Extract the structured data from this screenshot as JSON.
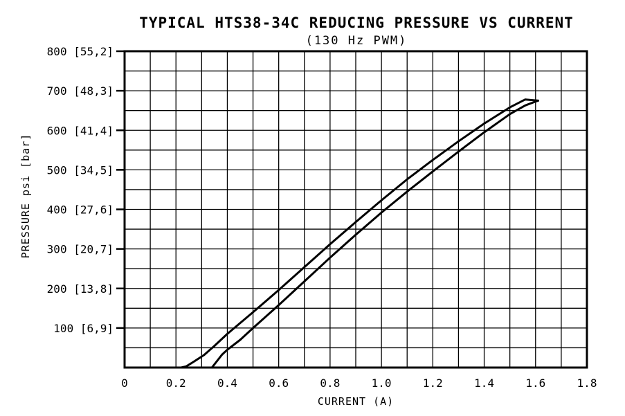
{
  "chart_data": {
    "type": "line",
    "title": "TYPICAL HTS38-34C REDUCING PRESSURE VS CURRENT",
    "subtitle": "(130 Hz PWM)",
    "xlabel": "CURRENT (A)",
    "ylabel": "PRESSURE psi [bar]",
    "xlim": [
      0,
      1.8
    ],
    "ylim": [
      0,
      800
    ],
    "grid": true,
    "x_ticks": [
      {
        "value": 0,
        "label": "0"
      },
      {
        "value": 0.2,
        "label": "0.2"
      },
      {
        "value": 0.4,
        "label": "0.4"
      },
      {
        "value": 0.6,
        "label": "0.6"
      },
      {
        "value": 0.8,
        "label": "0.8"
      },
      {
        "value": 1.0,
        "label": "1.0"
      },
      {
        "value": 1.2,
        "label": "1.2"
      },
      {
        "value": 1.4,
        "label": "1.4"
      },
      {
        "value": 1.6,
        "label": "1.6"
      },
      {
        "value": 1.8,
        "label": "1.8"
      }
    ],
    "y_ticks": [
      {
        "value": 100,
        "label": "100 [6,9]"
      },
      {
        "value": 200,
        "label": "200 [13,8]"
      },
      {
        "value": 300,
        "label": "300 [20,7]"
      },
      {
        "value": 400,
        "label": "400 [27,6]"
      },
      {
        "value": 500,
        "label": "500 [34,5]"
      },
      {
        "value": 600,
        "label": "600 [41,4]"
      },
      {
        "value": 700,
        "label": "700 [48,3]"
      },
      {
        "value": 800,
        "label": "800 [55,2]"
      }
    ],
    "series": [
      {
        "x": [
          0,
          0.22,
          0.24,
          0.27,
          0.31,
          0.35,
          0.4,
          0.5,
          0.6,
          0.7,
          0.8,
          0.9,
          1.0,
          1.1,
          1.2,
          1.3,
          1.4,
          1.5,
          1.56,
          1.61
        ],
        "y": [
          0,
          0,
          3,
          15,
          32,
          55,
          85,
          140,
          196,
          254,
          312,
          368,
          423,
          476,
          525,
          572,
          617,
          658,
          678,
          675
        ]
      },
      {
        "x": [
          0.34,
          0.38,
          0.4,
          0.45,
          0.5,
          0.6,
          0.7,
          0.8,
          0.9,
          1.0,
          1.1,
          1.2,
          1.3,
          1.4,
          1.5,
          1.56,
          1.61
        ],
        "y": [
          0,
          33,
          45,
          70,
          100,
          158,
          218,
          278,
          336,
          392,
          445,
          496,
          546,
          595,
          641,
          663,
          675
        ]
      }
    ]
  },
  "colors": {
    "line": "#000000",
    "grid": "#000000",
    "background": "#ffffff"
  }
}
